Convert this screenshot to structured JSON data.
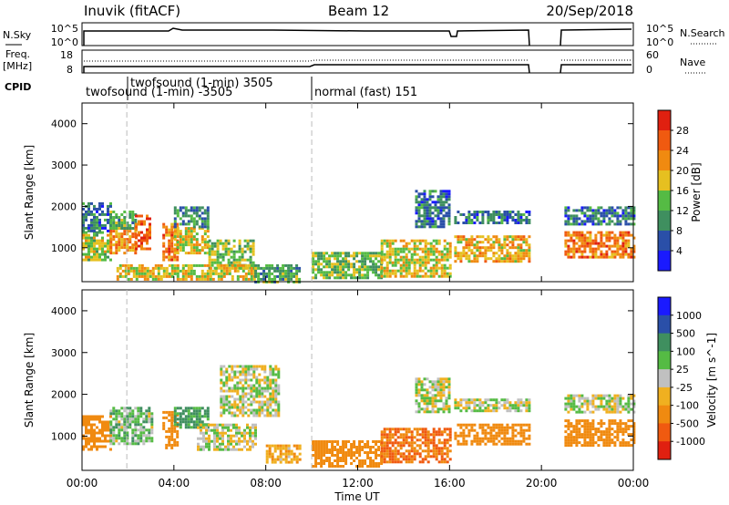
{
  "header": {
    "station": "Inuvik (fitACF)",
    "beam": "Beam 12",
    "date": "20/Sep/2018"
  },
  "noise_panel": {
    "left_label": "N.Sky",
    "left_ticks": [
      "10^5",
      "10^0"
    ],
    "right_label": "N.Search",
    "right_ticks": [
      "10^5",
      "10^0"
    ]
  },
  "freq_panel": {
    "left_label_1": "Freq.",
    "left_label_2": "[MHz]",
    "left_ticks": [
      "18",
      "8"
    ],
    "right_label": "Nave",
    "right_ticks": [
      "60",
      "0"
    ]
  },
  "cpid": {
    "label": "CPID",
    "segments": [
      {
        "text": "twofsound (1-min) 3505",
        "row": "upper"
      },
      {
        "text": "twofsound (1-min) -3505",
        "row": "lower"
      },
      {
        "text": "normal (fast) 151",
        "row": "lower"
      }
    ]
  },
  "colors": {
    "power_scale": [
      "#1a1aff",
      "#2a4fa8",
      "#3f8f5f",
      "#55bb44",
      "#e6c020",
      "#f08a10",
      "#f05a10",
      "#e02010"
    ],
    "velocity_scale": [
      "#1a1aff",
      "#2a4fa8",
      "#3f8f5f",
      "#55bb44",
      "#c0c0c0",
      "#f0b020",
      "#f08a10",
      "#f05a10",
      "#e02010"
    ],
    "ground_scatter": "#c0c0c0"
  },
  "chart_data": [
    {
      "type": "heatmap",
      "name": "power",
      "ylabel": "Slant Range [km]",
      "yticks": [
        1000,
        2000,
        3000,
        4000
      ],
      "ylim": [
        180,
        4500
      ],
      "xlim": [
        0,
        24
      ],
      "colorbar": {
        "label": "Power [dB]",
        "ticks": [
          4,
          8,
          12,
          16,
          20,
          24,
          28
        ],
        "range": [
          0,
          32
        ]
      },
      "regions": [
        {
          "t": [
            0.0,
            1.2
          ],
          "r": [
            700,
            1400
          ],
          "v": 16
        },
        {
          "t": [
            0.0,
            1.2
          ],
          "r": [
            1400,
            2100
          ],
          "v": 8
        },
        {
          "t": [
            1.2,
            2.3
          ],
          "r": [
            900,
            1500
          ],
          "v": 22
        },
        {
          "t": [
            1.2,
            2.3
          ],
          "r": [
            1500,
            1900
          ],
          "v": 12
        },
        {
          "t": [
            2.3,
            3.0
          ],
          "r": [
            1000,
            1800
          ],
          "v": 26
        },
        {
          "t": [
            3.5,
            4.2
          ],
          "r": [
            700,
            1600
          ],
          "v": 24
        },
        {
          "t": [
            4.0,
            5.5
          ],
          "r": [
            900,
            1500
          ],
          "v": 18
        },
        {
          "t": [
            4.0,
            5.5
          ],
          "r": [
            1500,
            2000
          ],
          "v": 10
        },
        {
          "t": [
            5.5,
            7.5
          ],
          "r": [
            500,
            1200
          ],
          "v": 14
        },
        {
          "t": [
            1.5,
            7.5
          ],
          "r": [
            250,
            600
          ],
          "v": 18
        },
        {
          "t": [
            7.5,
            9.5
          ],
          "r": [
            200,
            600
          ],
          "v": 12
        },
        {
          "t": [
            10.0,
            13.0
          ],
          "r": [
            250,
            900
          ],
          "v": 14
        },
        {
          "t": [
            13.0,
            16.0
          ],
          "r": [
            300,
            1200
          ],
          "v": 18
        },
        {
          "t": [
            14.5,
            16.0
          ],
          "r": [
            1500,
            2400
          ],
          "v": 8
        },
        {
          "t": [
            16.2,
            19.5
          ],
          "r": [
            1600,
            1900
          ],
          "v": 8
        },
        {
          "t": [
            16.2,
            19.5
          ],
          "r": [
            700,
            1300
          ],
          "v": 20
        },
        {
          "t": [
            21.0,
            24.0
          ],
          "r": [
            1600,
            2000
          ],
          "v": 8
        },
        {
          "t": [
            21.0,
            24.0
          ],
          "r": [
            800,
            1400
          ],
          "v": 24
        }
      ]
    },
    {
      "type": "heatmap",
      "name": "velocity",
      "ylabel": "Slant Range [km]",
      "yticks": [
        1000,
        2000,
        3000,
        4000
      ],
      "ylim": [
        180,
        4500
      ],
      "xlim": [
        0,
        24
      ],
      "xticks": [
        "00:00",
        "04:00",
        "08:00",
        "12:00",
        "16:00",
        "20:00",
        "00:00"
      ],
      "xlabel": "Time UT",
      "colorbar": {
        "label": "Velocity [m s^-1]",
        "ticks": [
          "1000",
          "500",
          "100",
          "25",
          "-25",
          "-100",
          "-500",
          "-1000"
        ]
      },
      "regions": [
        {
          "t": [
            0.0,
            1.2
          ],
          "r": [
            700,
            1500
          ],
          "v": -300
        },
        {
          "t": [
            1.2,
            3.0
          ],
          "r": [
            800,
            1700
          ],
          "v": 50
        },
        {
          "t": [
            3.5,
            4.2
          ],
          "r": [
            700,
            1600
          ],
          "v": -400
        },
        {
          "t": [
            4.0,
            5.5
          ],
          "r": [
            1200,
            1700
          ],
          "v": 150
        },
        {
          "t": [
            5.0,
            7.5
          ],
          "r": [
            700,
            1300
          ],
          "v": 0
        },
        {
          "t": [
            6.0,
            8.5
          ],
          "r": [
            1500,
            2700
          ],
          "v": 0
        },
        {
          "t": [
            8.0,
            9.5
          ],
          "r": [
            400,
            800
          ],
          "v": -100
        },
        {
          "t": [
            10.0,
            13.0
          ],
          "r": [
            300,
            900
          ],
          "v": -200
        },
        {
          "t": [
            13.0,
            16.0
          ],
          "r": [
            400,
            1200
          ],
          "v": -500
        },
        {
          "t": [
            14.5,
            16.0
          ],
          "r": [
            1600,
            2400
          ],
          "v": 0
        },
        {
          "t": [
            16.2,
            19.5
          ],
          "r": [
            1600,
            1900
          ],
          "v": 0
        },
        {
          "t": [
            16.2,
            19.5
          ],
          "r": [
            800,
            1300
          ],
          "v": -300
        },
        {
          "t": [
            21.0,
            24.0
          ],
          "r": [
            1600,
            2000
          ],
          "v": 0
        },
        {
          "t": [
            21.0,
            24.0
          ],
          "r": [
            800,
            1400
          ],
          "v": -400
        }
      ]
    }
  ]
}
